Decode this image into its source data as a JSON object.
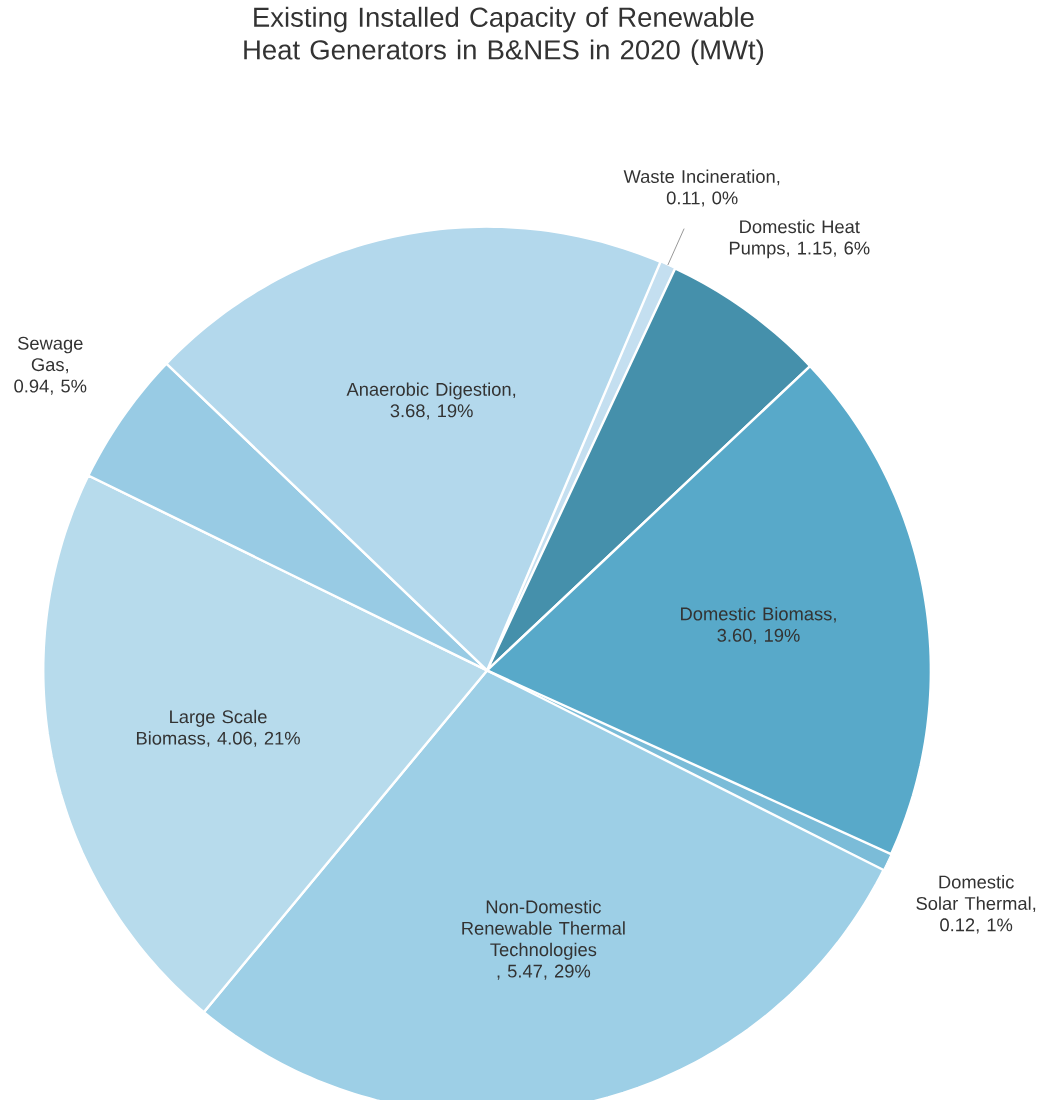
{
  "chart_data": {
    "type": "pie",
    "title": "Existing Installed Capacity of Renewable Heat Generators in B&NES in 2020 (MWt)",
    "categories": [
      "Waste Incineration",
      "Domestic Heat Pumps",
      "Domestic Biomass",
      "Domestic Solar Thermal",
      "Non-Domestic Renewable Thermal Technologies",
      "Large Scale Biomass",
      "Sewage Gas",
      "Anaerobic Digestion"
    ],
    "values": [
      0.11,
      1.15,
      3.6,
      0.12,
      5.47,
      4.06,
      0.94,
      3.68
    ],
    "value_labels": [
      ", 0.11, 0%",
      ", 1.15, 6%",
      ", 3.60, 19%",
      ", 0.12, 1%",
      " , 5.47, 29%",
      ", 4.06, 21%",
      ", 0.94, 5%",
      ", 3.68, 19%"
    ],
    "colors": [
      "#c4dff0",
      "#4590ab",
      "#58a9c9",
      "#7bbcd8",
      "#9dcfe6",
      "#b7dbec",
      "#98cbe4",
      "#b3d8ec"
    ]
  }
}
